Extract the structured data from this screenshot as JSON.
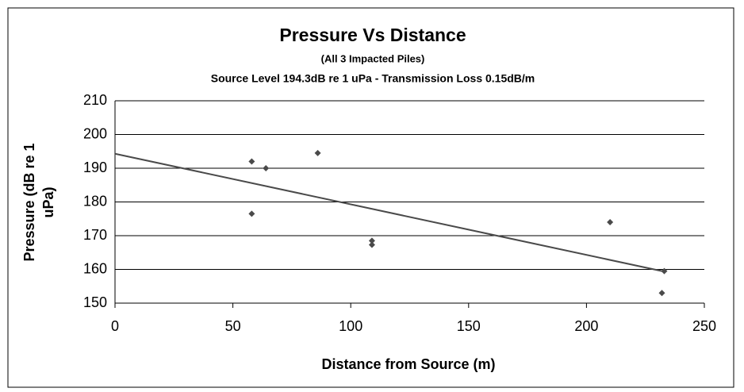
{
  "chart_data": {
    "type": "scatter",
    "title": "Pressure Vs Distance",
    "subtitle": "(All 3 Impacted Piles)",
    "subtitle2": "Source Level 194.3dB re 1 uPa - Transmission Loss 0.15dB/m",
    "x_label": "Distance from Source (m)",
    "y_label": [
      "Pressure (dB re 1",
      "uPa)"
    ],
    "series": [
      {
        "color": "#4a4a4a",
        "x": [
          58,
          58,
          64,
          86,
          109,
          109,
          210,
          233,
          232
        ],
        "values": [
          192,
          176.5,
          190,
          194.5,
          168.5,
          167.3,
          174,
          159.5,
          153
        ]
      }
    ],
    "trendline": {
      "color": "#4a4a4a",
      "x": [
        0,
        233
      ],
      "values": [
        194.3,
        159.35
      ]
    },
    "xlim": [
      0,
      250
    ],
    "xticks": [
      0,
      50,
      100,
      150,
      200,
      250
    ],
    "ylim": [
      150,
      210
    ],
    "yticks": [
      150,
      160,
      170,
      180,
      190,
      200,
      210
    ],
    "grid": true
  }
}
